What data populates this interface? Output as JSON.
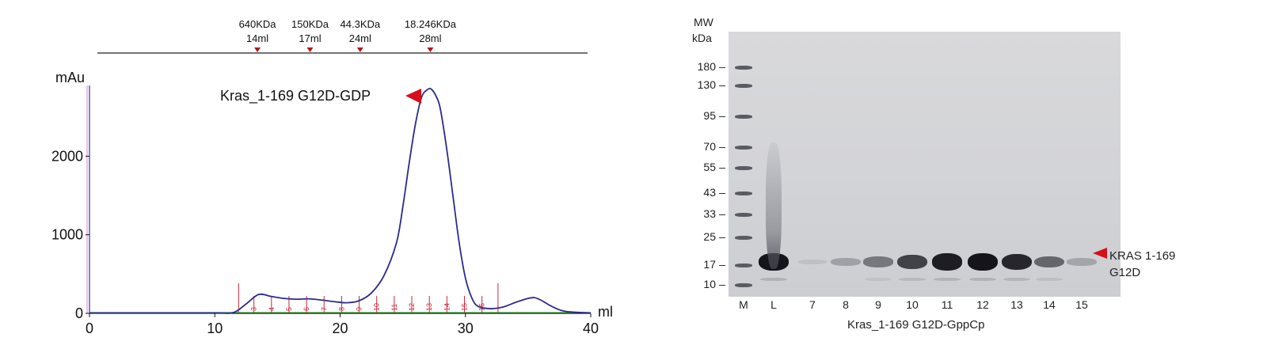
{
  "chart_data": [
    {
      "type": "line",
      "xlabel": "ml",
      "ylabel": "mAu",
      "xlim": [
        0,
        40
      ],
      "ylim": [
        0,
        2900
      ],
      "xticks": [
        0,
        10,
        20,
        30,
        40
      ],
      "yticks": [
        0,
        1000,
        2000
      ],
      "annotation": "Kras_1-169 G12D-GDP",
      "peak": {
        "x": 27.3,
        "y": 2850
      },
      "standards": [
        {
          "mw": "640KDa",
          "vol": "14ml",
          "x": 13.4
        },
        {
          "mw": "150KDa",
          "vol": "17ml",
          "x": 17.6
        },
        {
          "mw": "44.3KDa",
          "vol": "24ml",
          "x": 21.6
        },
        {
          "mw": "18.246KDa",
          "vol": "28ml",
          "x": 27.2
        }
      ],
      "fractions": [
        {
          "label": "3",
          "x": 13.5
        },
        {
          "label": "4",
          "x": 14.9
        },
        {
          "label": "5",
          "x": 16.3
        },
        {
          "label": "6",
          "x": 17.7
        },
        {
          "label": "7",
          "x": 19.1
        },
        {
          "label": "8",
          "x": 20.5
        },
        {
          "label": "9",
          "x": 21.9
        },
        {
          "label": "10",
          "x": 23.3
        },
        {
          "label": "11",
          "x": 24.7
        },
        {
          "label": "12",
          "x": 26.1
        },
        {
          "label": "13",
          "x": 27.5
        },
        {
          "label": "14",
          "x": 28.9
        },
        {
          "label": "15",
          "x": 30.3
        },
        {
          "label": "16",
          "x": 31.7
        }
      ],
      "fraction_boundaries": [
        11.9,
        32.6
      ],
      "series": [
        {
          "color": "#2b2b8f",
          "x": [
            0,
            5,
            10,
            11.5,
            12.5,
            13.5,
            14.5,
            15.5,
            16.5,
            17.5,
            18.5,
            19.5,
            20.5,
            21.5,
            22.5,
            23.5,
            24.5,
            25.0,
            25.5,
            26.0,
            26.5,
            27.0,
            27.3,
            27.7,
            28.0,
            28.5,
            29.0,
            29.5,
            30.0,
            30.5,
            31.0,
            32.0,
            33.0,
            34.0,
            35.0,
            35.5,
            36.0,
            37.0,
            38.0,
            40.0
          ],
          "y": [
            5,
            5,
            5,
            12,
            120,
            240,
            215,
            190,
            180,
            185,
            170,
            150,
            135,
            160,
            260,
            480,
            900,
            1350,
            1900,
            2400,
            2750,
            2850,
            2850,
            2750,
            2600,
            2100,
            1500,
            900,
            450,
            200,
            90,
            60,
            80,
            140,
            190,
            200,
            170,
            80,
            25,
            5
          ]
        }
      ]
    },
    {
      "type": "table",
      "title": "",
      "xlabel": "Kras_1-169 G12D-GppCp",
      "mw_header": [
        "MW",
        "kDa"
      ],
      "mw_markers": [
        "180",
        "130",
        "95",
        "70",
        "55",
        "43",
        "33",
        "25",
        "17",
        "10"
      ],
      "lanes": [
        "M",
        "L",
        "7",
        "8",
        "9",
        "10",
        "11",
        "12",
        "13",
        "14",
        "15"
      ],
      "band_label": [
        "KRAS 1-169",
        "G12D"
      ],
      "band_intensity": {
        "L": 1.0,
        "7": 0.05,
        "8": 0.22,
        "9": 0.45,
        "10": 0.75,
        "11": 0.95,
        "12": 1.0,
        "13": 0.9,
        "14": 0.55,
        "15": 0.2
      }
    }
  ]
}
